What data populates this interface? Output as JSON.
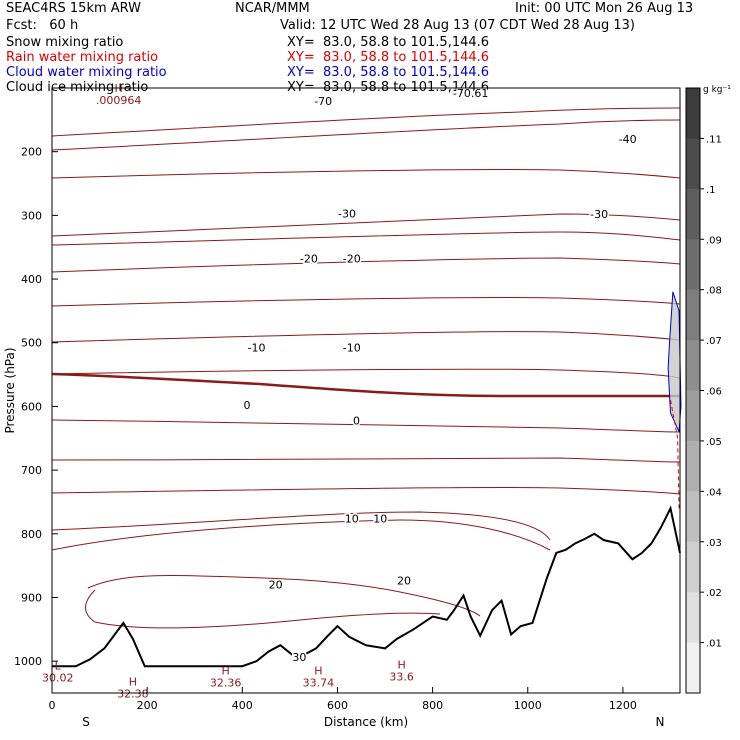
{
  "header": {
    "model": "SEAC4RS 15km ARW",
    "org": "NCAR/MMM",
    "init": "Init: 00 UTC Mon 26 Aug 13",
    "fcst": "Fcst:   60 h",
    "valid": "Valid: 12 UTC Wed 28 Aug 13 (07 CDT Wed 28 Aug 13)"
  },
  "fields": [
    {
      "name": "Snow mixing ratio",
      "xy": "XY=  83.0, 58.8 to 101.5,144.6",
      "color": "#000000"
    },
    {
      "name": "Rain water mixing ratio",
      "xy": "XY=  83.0, 58.8 to 101.5,144.6",
      "color": "#e00000"
    },
    {
      "name": "Cloud water mixing ratio",
      "xy": "XY=  83.0, 58.8 to 101.5,144.6",
      "color": "#0000cc"
    },
    {
      "name": "Cloud ice mixing ratio",
      "xy": "XY=  83.0, 58.8 to 101.5,144.6",
      "color": "#000000"
    }
  ],
  "colors": {
    "isotherm": "#8b1a1a",
    "terrain": "#000000",
    "rain": "#e00000",
    "cloud": "#0000cc"
  },
  "chart_data": {
    "type": "cross-section",
    "xlabel": "Distance (km)",
    "ylabel": "Pressure (hPa)",
    "xlim": [
      0,
      1320
    ],
    "ylim": [
      1050,
      100
    ],
    "x_ticks": [
      0,
      200,
      400,
      600,
      800,
      1000,
      1200
    ],
    "y_ticks": [
      200,
      300,
      400,
      500,
      600,
      700,
      800,
      900,
      1000
    ],
    "endpoint_labels": {
      "left": "S",
      "right": "N"
    },
    "colorbar": {
      "unit": "g kg⁻¹",
      "ticks": [
        ".11",
        ".1",
        ".09",
        ".08",
        ".07",
        ".06",
        ".05",
        ".04",
        ".03",
        ".02",
        ".01"
      ]
    },
    "contour_labels": [
      {
        "text": "-70",
        "x": 570,
        "p": 127
      },
      {
        "text": "-70.61",
        "x": 880,
        "p": 114
      },
      {
        "text": "-40",
        "x": 1210,
        "p": 186
      },
      {
        "text": "-30",
        "x": 620,
        "p": 303
      },
      {
        "text": "-30",
        "x": 1150,
        "p": 304
      },
      {
        "text": "-20",
        "x": 540,
        "p": 374
      },
      {
        "text": "-20",
        "x": 630,
        "p": 374
      },
      {
        "text": "-10",
        "x": 430,
        "p": 514
      },
      {
        "text": "-10",
        "x": 630,
        "p": 514
      },
      {
        "text": "0",
        "x": 410,
        "p": 604
      },
      {
        "text": "0",
        "x": 640,
        "p": 628
      },
      {
        "text": "10",
        "x": 630,
        "p": 782
      },
      {
        "text": "10",
        "x": 690,
        "p": 782
      },
      {
        "text": "20",
        "x": 470,
        "p": 886
      },
      {
        "text": "20",
        "x": 740,
        "p": 880
      },
      {
        "text": "30",
        "x": 520,
        "p": 1000
      }
    ],
    "extrema": [
      {
        "mark": "H",
        "value": ".000964",
        "x": 140,
        "p": 125
      },
      {
        "mark": "L",
        "value": "30.02",
        "x": 12,
        "p": 1032
      },
      {
        "mark": "H",
        "value": "32.38",
        "x": 170,
        "p": 1057
      },
      {
        "mark": "H",
        "value": "32.36",
        "x": 365,
        "p": 1040
      },
      {
        "mark": "H",
        "value": "33.74",
        "x": 560,
        "p": 1040
      },
      {
        "mark": "H",
        "value": "33.6",
        "x": 735,
        "p": 1030
      }
    ],
    "terrain_surface": [
      [
        0,
        1008
      ],
      [
        50,
        1008
      ],
      [
        80,
        997
      ],
      [
        110,
        980
      ],
      [
        135,
        955
      ],
      [
        150,
        940
      ],
      [
        170,
        965
      ],
      [
        195,
        1008
      ],
      [
        260,
        1008
      ],
      [
        400,
        1008
      ],
      [
        430,
        1000
      ],
      [
        455,
        985
      ],
      [
        480,
        975
      ],
      [
        505,
        990
      ],
      [
        530,
        990
      ],
      [
        555,
        980
      ],
      [
        580,
        960
      ],
      [
        600,
        945
      ],
      [
        625,
        962
      ],
      [
        660,
        975
      ],
      [
        700,
        980
      ],
      [
        725,
        965
      ],
      [
        760,
        950
      ],
      [
        800,
        930
      ],
      [
        830,
        935
      ],
      [
        845,
        920
      ],
      [
        865,
        897
      ],
      [
        880,
        930
      ],
      [
        900,
        960
      ],
      [
        925,
        920
      ],
      [
        945,
        905
      ],
      [
        965,
        958
      ],
      [
        985,
        945
      ],
      [
        1010,
        940
      ],
      [
        1040,
        870
      ],
      [
        1060,
        830
      ],
      [
        1080,
        825
      ],
      [
        1100,
        815
      ],
      [
        1120,
        808
      ],
      [
        1140,
        800
      ],
      [
        1160,
        810
      ],
      [
        1190,
        815
      ],
      [
        1220,
        840
      ],
      [
        1240,
        830
      ],
      [
        1260,
        815
      ],
      [
        1280,
        790
      ],
      [
        1300,
        760
      ],
      [
        1320,
        830
      ]
    ],
    "rain_column": [
      [
        1300,
        590
      ],
      [
        1315,
        650
      ],
      [
        1318,
        760
      ]
    ],
    "cloud_water_region": [
      [
        1298,
        500
      ],
      [
        1305,
        420
      ],
      [
        1318,
        450
      ],
      [
        1322,
        600
      ],
      [
        1318,
        640
      ],
      [
        1300,
        610
      ],
      [
        1295,
        540
      ]
    ]
  }
}
